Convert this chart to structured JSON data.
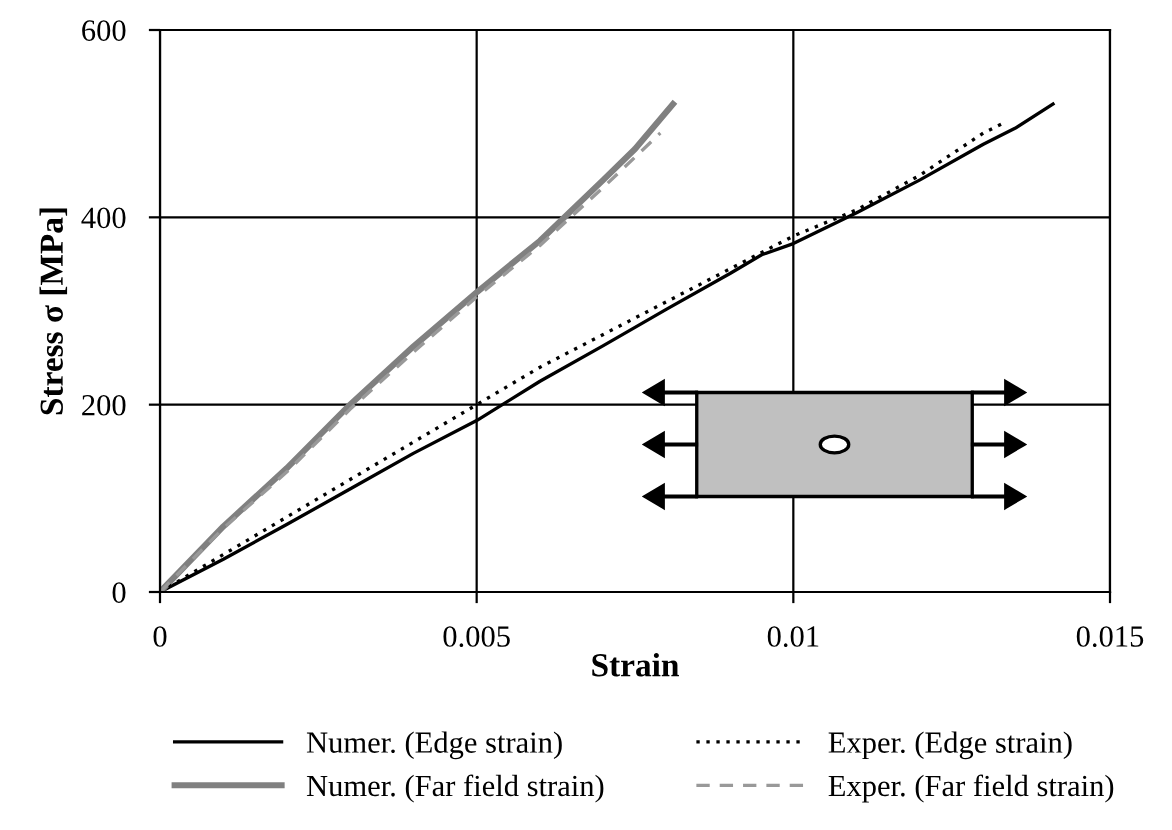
{
  "chart_data": {
    "type": "line",
    "xlabel": "Strain",
    "ylabel": "Stress σ [MPa]",
    "xlim": [
      0,
      0.015
    ],
    "xticks": [
      0,
      0.005,
      0.01,
      0.015
    ],
    "ylim": [
      0,
      600
    ],
    "yticks": [
      0,
      200,
      400,
      600
    ],
    "grid": true,
    "legend": "bottom",
    "marker": "none",
    "series": [
      {
        "name": "Numer. (Edge strain)",
        "color": "#000000",
        "line_style": "solid",
        "x": [
          0,
          0.001,
          0.002,
          0.003,
          0.004,
          0.005,
          0.006,
          0.007,
          0.008,
          0.009,
          0.0095,
          0.01,
          0.011,
          0.012,
          0.013,
          0.0135,
          0.0141
        ],
        "values": [
          0,
          35,
          72,
          110,
          148,
          183,
          225,
          263,
          302,
          340,
          360,
          372,
          405,
          440,
          478,
          495,
          521
        ]
      },
      {
        "name": "Numer. (Far field strain)",
        "color": "#808080",
        "line_style": "solid",
        "x": [
          0,
          0.001,
          0.002,
          0.003,
          0.004,
          0.005,
          0.006,
          0.007,
          0.0075,
          0.0081
        ],
        "values": [
          0,
          70,
          132,
          200,
          262,
          320,
          375,
          440,
          473,
          521
        ]
      },
      {
        "name": "Exper. (Edge strain)",
        "color": "#000000",
        "line_style": "dotted",
        "x": [
          0,
          0.002,
          0.004,
          0.005,
          0.006,
          0.008,
          0.01,
          0.011,
          0.012,
          0.013,
          0.0133
        ],
        "values": [
          0,
          80,
          160,
          200,
          240,
          310,
          380,
          408,
          445,
          490,
          500
        ]
      },
      {
        "name": "Exper. (Far field strain)",
        "color": "#999999",
        "line_style": "dashed",
        "x": [
          0,
          0.001,
          0.002,
          0.003,
          0.004,
          0.005,
          0.006,
          0.007,
          0.0079
        ],
        "values": [
          0,
          68,
          128,
          195,
          256,
          315,
          370,
          432,
          490
        ]
      }
    ]
  }
}
